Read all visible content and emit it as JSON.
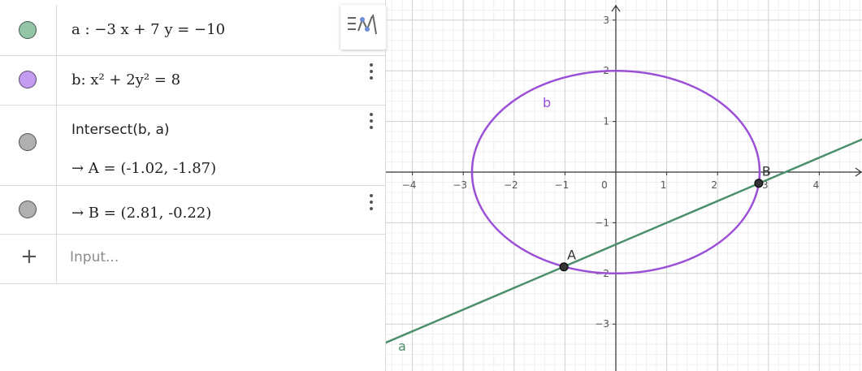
{
  "algebra": {
    "rows": [
      {
        "id": "a",
        "marble_color": "#93c5a6",
        "text": "a :  −3 x + 7 y  =  −10"
      },
      {
        "id": "b",
        "marble_color": "#c39cf0",
        "text": "b: x² + 2y² = 8"
      },
      {
        "id": "intersect",
        "marble_color": "#b0b0b0",
        "text": "Intersect(b, a)",
        "output": "→  A = (-1.02, -1.87)"
      },
      {
        "id": "B",
        "marble_color": "#b0b0b0",
        "text": "→  B = (2.81, -0.22)"
      }
    ],
    "input": {
      "placeholder": "Input..."
    },
    "add_symbol": "+"
  },
  "graphics": {
    "x_ticks": [
      -4,
      -3,
      -2,
      -1,
      0,
      1,
      2,
      3,
      4
    ],
    "x_tick_labels": [
      "−4",
      "−3",
      "−2",
      "−1",
      "0",
      "1",
      "2",
      "3",
      "4"
    ],
    "y_ticks": [
      3,
      2,
      1,
      -1,
      -2,
      -3
    ],
    "y_tick_labels": [
      "3",
      "2",
      "1",
      "−1",
      "−2",
      "−3"
    ],
    "line_label": "a",
    "ellipse_label": "b",
    "points": [
      {
        "label": "A",
        "x": -1.02,
        "y": -1.87
      },
      {
        "label": "B",
        "x": 2.81,
        "y": -0.22
      }
    ],
    "line_color": "#4a8f6a",
    "ellipse_color": "#9b4fd6",
    "point_color": "#333333"
  }
}
